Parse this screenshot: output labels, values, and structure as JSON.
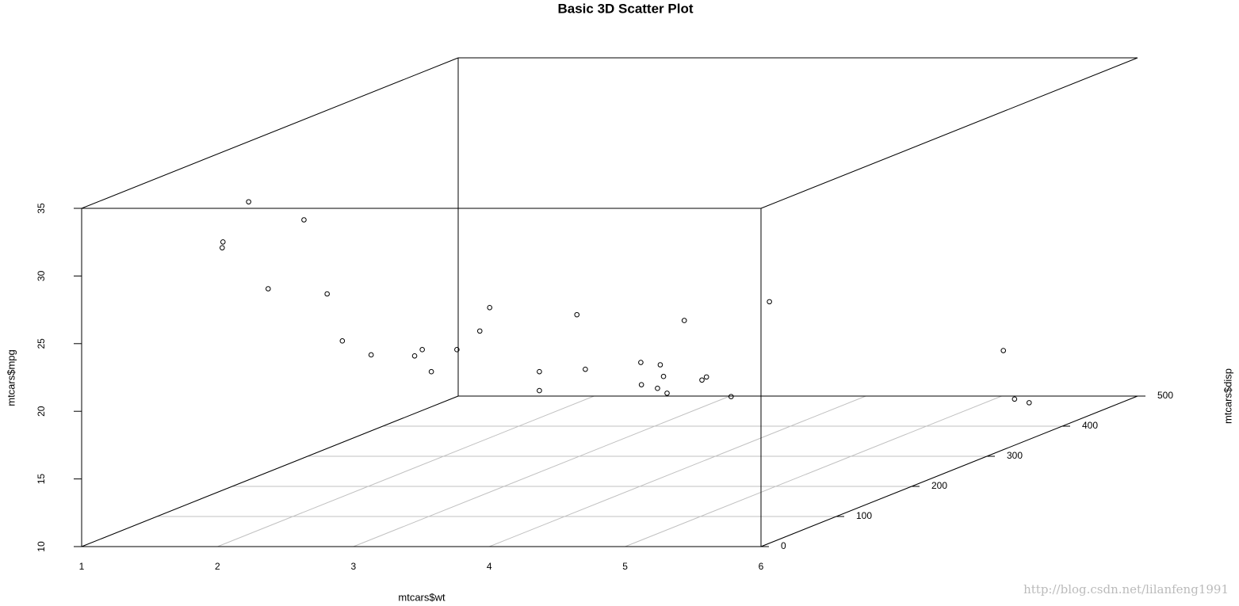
{
  "chart_data": {
    "type": "scatter3d",
    "title": "Basic 3D Scatter Plot",
    "x_label": "mtcars$wt",
    "y_label": "mtcars$mpg",
    "z_label": "mtcars$disp",
    "watermark": "http://blog.csdn.net/lilanfeng1991",
    "color": "#000000",
    "grid": true,
    "xlim": [
      1,
      6
    ],
    "xticks": [
      1,
      2,
      3,
      4,
      5,
      6
    ],
    "ylim": [
      10,
      35
    ],
    "yticks": [
      10,
      15,
      20,
      25,
      30,
      35
    ],
    "zlim": [
      0,
      500
    ],
    "zticks": [
      0,
      100,
      200,
      300,
      400,
      500
    ],
    "x": [
      2.62,
      2.875,
      2.32,
      3.215,
      3.44,
      3.46,
      3.57,
      3.19,
      3.15,
      3.44,
      3.44,
      4.07,
      3.73,
      3.78,
      5.25,
      5.424,
      5.345,
      2.2,
      1.615,
      1.835,
      2.465,
      3.52,
      3.435,
      3.84,
      3.845,
      1.935,
      2.14,
      1.513,
      3.17,
      2.77,
      3.57,
      2.78
    ],
    "y": [
      21,
      21,
      22.8,
      21.4,
      18.7,
      18.1,
      14.3,
      24.4,
      22.8,
      19.2,
      17.8,
      16.4,
      17.3,
      15.2,
      10.4,
      10.4,
      14.7,
      32.4,
      30.4,
      33.9,
      21.5,
      15.5,
      15.2,
      13.3,
      19.2,
      27.3,
      26,
      30.4,
      15.8,
      19.7,
      15,
      21.4
    ],
    "z": [
      160,
      160,
      108,
      258,
      360,
      225,
      360,
      146.7,
      140.8,
      167.6,
      167.6,
      275.8,
      275.8,
      275.8,
      472,
      460,
      440,
      78.7,
      75.7,
      71.1,
      120.1,
      318,
      304,
      350,
      400,
      79,
      120.3,
      95.1,
      351,
      145,
      301,
      121
    ]
  }
}
